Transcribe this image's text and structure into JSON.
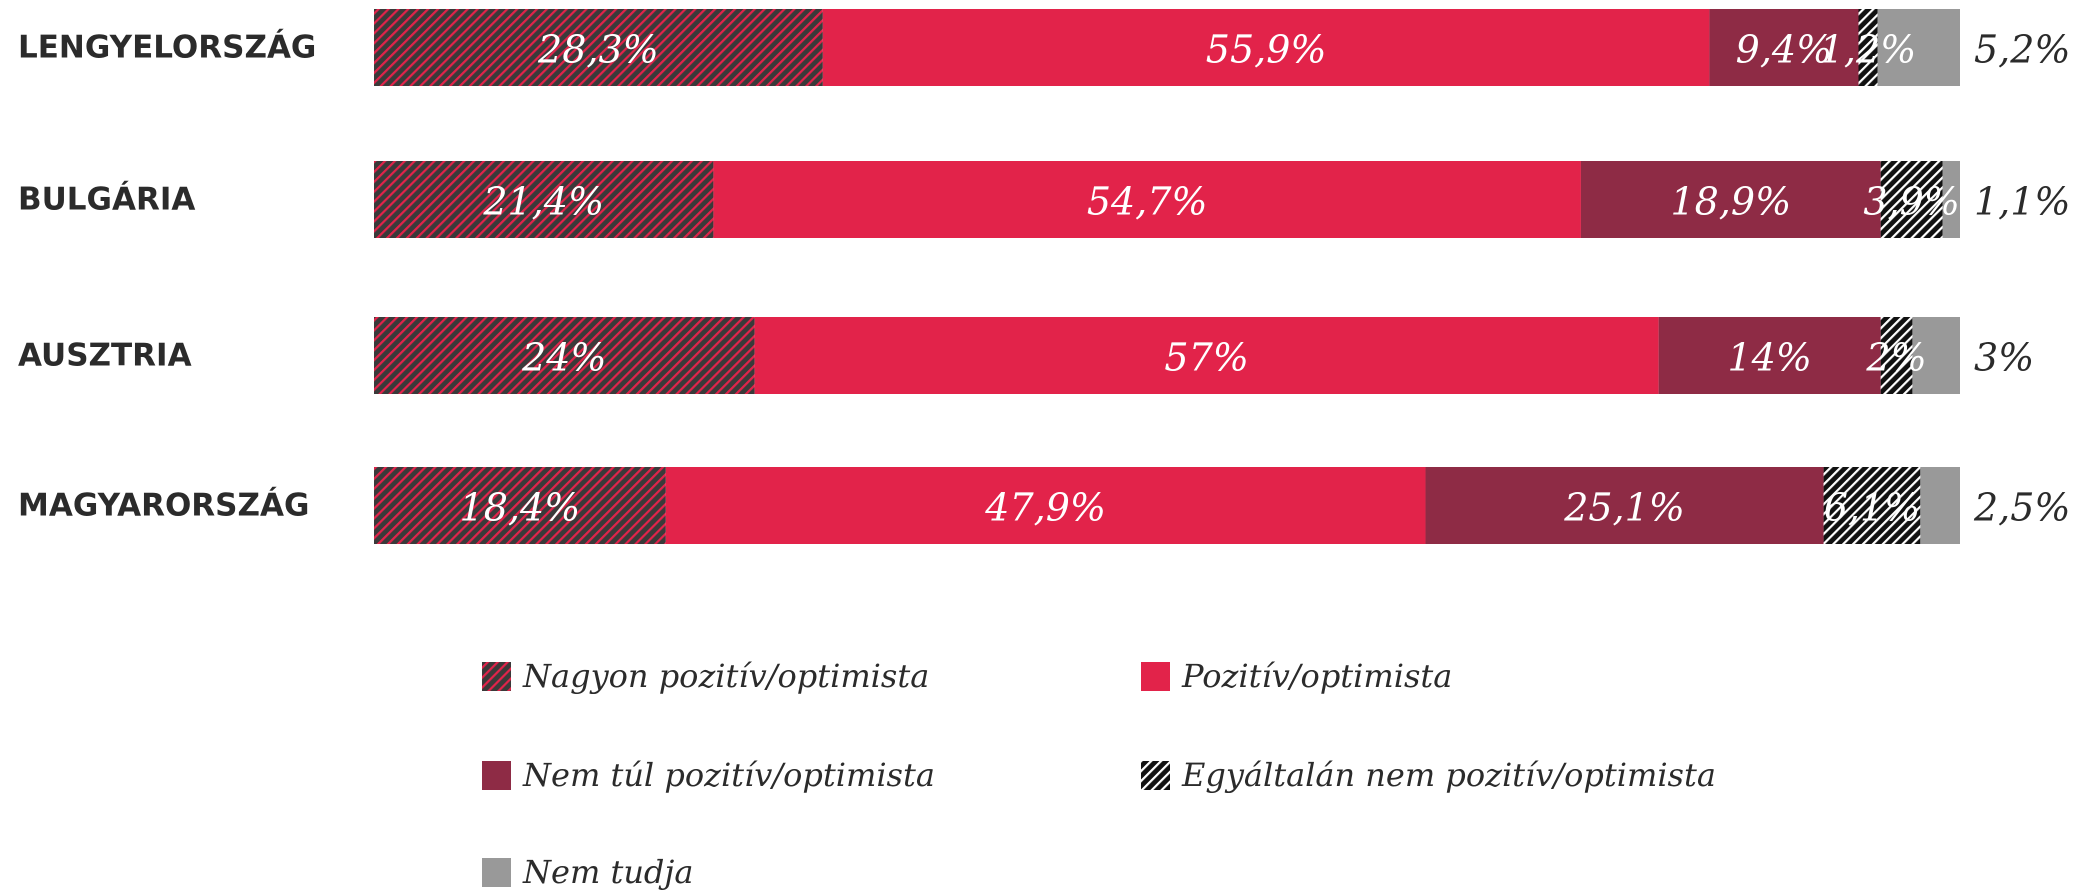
{
  "chart_data": {
    "type": "stacked-bar-horizontal",
    "categories": [
      "LENGYELORSZÁG",
      "BULGÁRIA",
      "AUSZTRIA",
      "MAGYARORSZÁG"
    ],
    "series": [
      {
        "name": "Nagyon pozitív/optimista",
        "color": "#3a3a3a",
        "hatch": "#e2234a",
        "values": [
          28.3,
          21.4,
          24,
          18.4
        ],
        "value_labels": [
          "28,3%",
          "21,4%",
          "24%",
          "18,4%"
        ]
      },
      {
        "name": "Pozitív/optimista",
        "color": "#e2234a",
        "values": [
          55.9,
          54.7,
          57,
          47.9
        ],
        "value_labels": [
          "55,9%",
          "54,7%",
          "57%",
          "47,9%"
        ]
      },
      {
        "name": "Nem túl pozitív/optimista",
        "color": "#8e2b45",
        "values": [
          9.4,
          18.9,
          14,
          25.1
        ],
        "value_labels": [
          "9,4%",
          "18,9%",
          "14%",
          "25,1%"
        ]
      },
      {
        "name": "Egyáltalán nem pozitív/optimista",
        "color": "#111111",
        "hatch": "#ffffff",
        "values": [
          1.2,
          3.9,
          2,
          6.1
        ],
        "value_labels": [
          "1,2%",
          "3,9%",
          "2%",
          "6,1%"
        ]
      },
      {
        "name": "Nem tudja",
        "color": "#999999",
        "values": [
          5.2,
          1.1,
          3,
          2.5
        ],
        "value_labels": [
          "5,2%",
          "1,1%",
          "3%",
          "2,5%"
        ]
      }
    ]
  }
}
